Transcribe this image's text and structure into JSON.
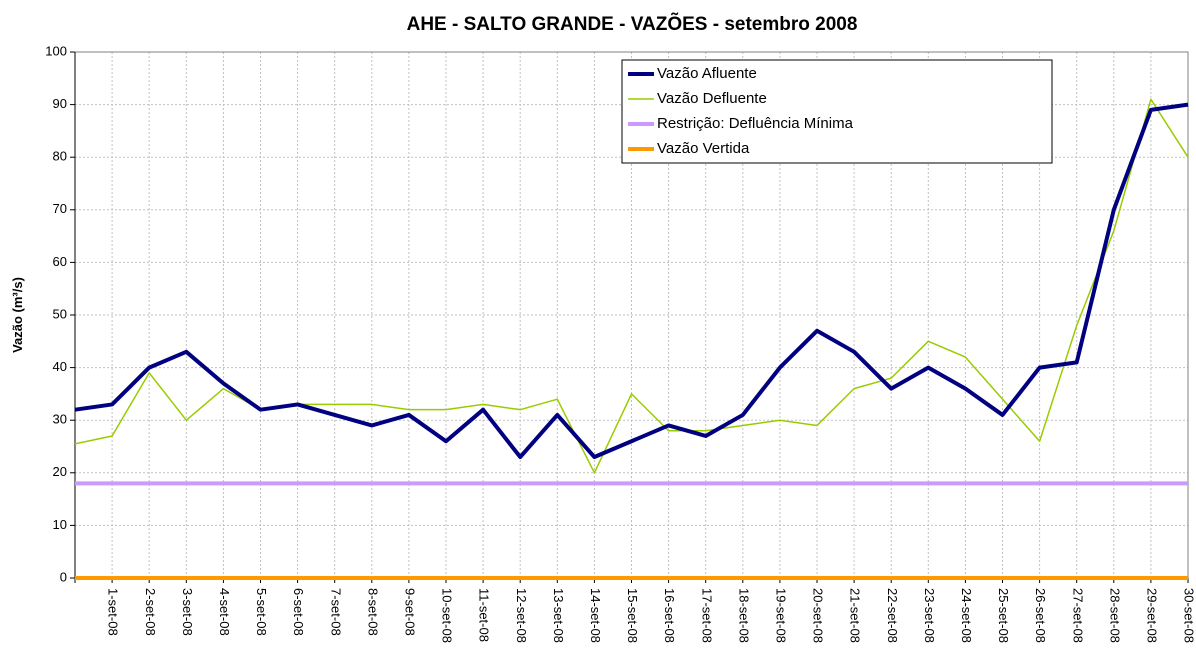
{
  "chart_data": {
    "type": "line",
    "title": "AHE - SALTO GRANDE - VAZÕES - setembro 2008",
    "y_label": "Vazão (m³/s)",
    "categories": [
      null,
      "1-set-08",
      "2-set-08",
      "3-set-08",
      "4-set-08",
      "5-set-08",
      "6-set-08",
      "7-set-08",
      "8-set-08",
      "9-set-08",
      "10-set-08",
      "11-set-08",
      "12-set-08",
      "13-set-08",
      "14-set-08",
      "15-set-08",
      "16-set-08",
      "17-set-08",
      "18-set-08",
      "19-set-08",
      "20-set-08",
      "21-set-08",
      "22-set-08",
      "23-set-08",
      "24-set-08",
      "25-set-08",
      "26-set-08",
      "27-set-08",
      "28-set-08",
      "29-set-08",
      "30-set-08"
    ],
    "series": [
      {
        "name": "Vazão Afluente",
        "color": "#000080",
        "width": 4,
        "values": [
          32,
          33,
          40,
          43,
          37,
          32,
          33,
          31,
          29,
          31,
          26,
          32,
          23,
          31,
          23,
          26,
          29,
          27,
          31,
          40,
          47,
          43,
          36,
          40,
          36,
          31,
          40,
          41,
          70,
          89,
          90
        ]
      },
      {
        "name": "Vazão Defluente",
        "color": "#99cc00",
        "width": 1.5,
        "values": [
          25.5,
          27,
          39,
          30,
          36,
          32,
          33,
          33,
          33,
          32,
          32,
          33,
          32,
          34,
          20,
          35,
          28,
          28,
          29,
          30,
          29,
          36,
          38,
          45,
          42,
          34,
          26,
          48,
          66,
          91,
          80
        ]
      },
      {
        "name": "Restrição: Defluência Mínima",
        "color": "#cc99ff",
        "width": 4,
        "values": [
          18,
          18,
          18,
          18,
          18,
          18,
          18,
          18,
          18,
          18,
          18,
          18,
          18,
          18,
          18,
          18,
          18,
          18,
          18,
          18,
          18,
          18,
          18,
          18,
          18,
          18,
          18,
          18,
          18,
          18,
          18
        ]
      },
      {
        "name": "Vazão Vertida",
        "color": "#ff9900",
        "width": 4,
        "values": [
          0,
          0,
          0,
          0,
          0,
          0,
          0,
          0,
          0,
          0,
          0,
          0,
          0,
          0,
          0,
          0,
          0,
          0,
          0,
          0,
          0,
          0,
          0,
          0,
          0,
          0,
          0,
          0,
          0,
          0,
          0
        ]
      }
    ],
    "ylim": [
      0,
      100
    ],
    "yticks": [
      0,
      10,
      20,
      30,
      40,
      50,
      60,
      70,
      80,
      90,
      100
    ],
    "grid": true
  }
}
